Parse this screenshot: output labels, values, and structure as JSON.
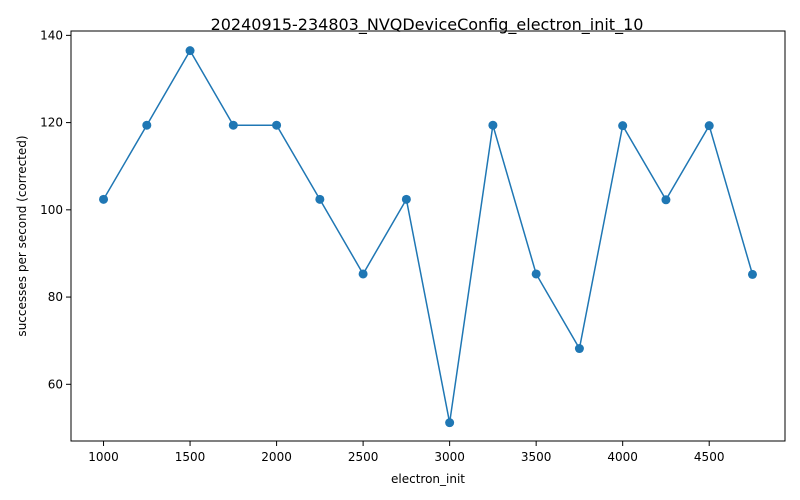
{
  "chart_data": {
    "type": "line",
    "title": "20240915-234803_NVQDeviceConfig_electron_init_10",
    "xlabel": "electron_init",
    "ylabel": "successes per second (corrected)",
    "xlim": [
      812,
      4938
    ],
    "ylim": [
      47,
      141
    ],
    "xticks": [
      1000,
      1500,
      2000,
      2500,
      3000,
      3500,
      4000,
      4500
    ],
    "yticks": [
      60,
      80,
      100,
      120,
      140
    ],
    "grid": false,
    "color": "#1f77b4",
    "series": [
      {
        "x": [
          1000,
          1250,
          1500,
          1750,
          2000,
          2250,
          2500,
          2750,
          3000,
          3250,
          3500,
          3750,
          4000,
          4250,
          4500,
          4750
        ],
        "values": [
          102.4,
          119.4,
          136.5,
          119.4,
          119.4,
          102.4,
          85.3,
          102.4,
          51.2,
          119.4,
          85.3,
          68.2,
          119.3,
          102.3,
          119.3,
          85.2
        ]
      }
    ]
  }
}
